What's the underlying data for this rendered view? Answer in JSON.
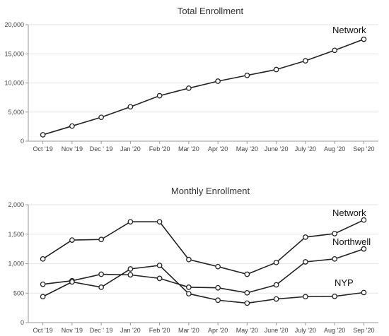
{
  "chart_data": [
    {
      "type": "line",
      "title": "Total Enrollment",
      "xlabel": "",
      "ylabel": "",
      "categories": [
        "Oct '19",
        "Nov '19",
        "Dec ' 19",
        "Jan '20",
        "Feb '20",
        "Mar '20",
        "Apr '20",
        "May '20",
        "June '20",
        "July '20",
        "Aug '20",
        "Sep '20"
      ],
      "ylim": [
        0,
        20000
      ],
      "yticks": [
        "0",
        "5,000",
        "10,000",
        "15,000",
        "20,000"
      ],
      "ytick_values": [
        0,
        5000,
        10000,
        15000,
        20000
      ],
      "grid": true,
      "legend": "inline",
      "series": [
        {
          "name": "Network",
          "values": [
            1100,
            2600,
            4100,
            5900,
            7800,
            9100,
            10300,
            11300,
            12300,
            13800,
            15600,
            17500
          ]
        }
      ]
    },
    {
      "type": "line",
      "title": "Monthly Enrollment",
      "xlabel": "",
      "ylabel": "",
      "categories": [
        "Oct '19",
        "Nov '19",
        "Dec ' 19",
        "Jan '20",
        "Feb '20",
        "Mar '20",
        "Apr '20",
        "May '20",
        "June '20",
        "July '20",
        "Aug '20",
        "Sep '20"
      ],
      "ylim": [
        0,
        2000
      ],
      "yticks": [
        "0",
        "500",
        "1,000",
        "1,500",
        "2,000"
      ],
      "ytick_values": [
        0,
        500,
        1000,
        1500,
        2000
      ],
      "grid": true,
      "legend": "inline",
      "series": [
        {
          "name": "Network",
          "values": [
            1080,
            1400,
            1410,
            1710,
            1710,
            1070,
            950,
            820,
            1020,
            1450,
            1510,
            1740
          ]
        },
        {
          "name": "Northwell",
          "values": [
            650,
            710,
            820,
            810,
            750,
            600,
            590,
            505,
            640,
            1030,
            1080,
            1250
          ]
        },
        {
          "name": "NYP",
          "values": [
            440,
            690,
            600,
            910,
            970,
            490,
            380,
            330,
            400,
            440,
            445,
            510
          ]
        }
      ]
    }
  ]
}
